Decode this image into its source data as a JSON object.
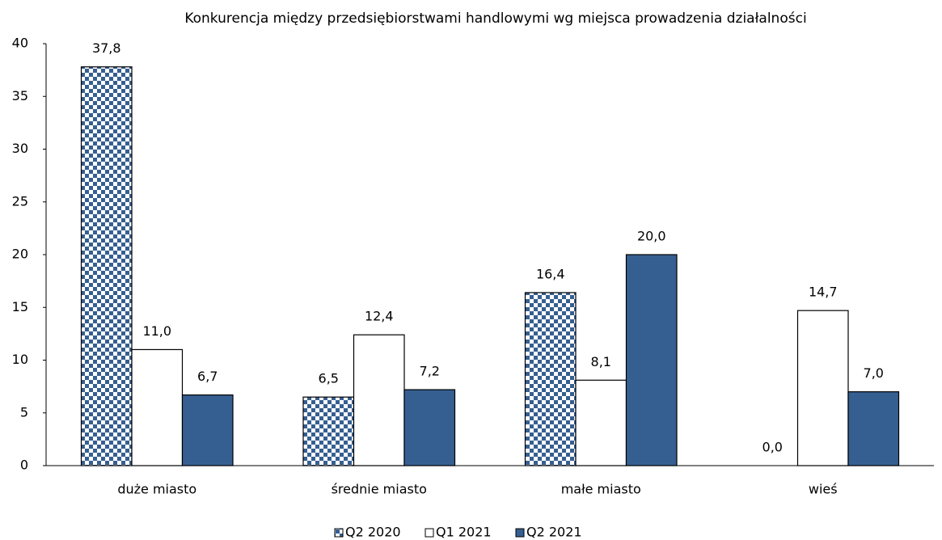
{
  "chart_data": {
    "type": "bar",
    "title": "Konkurencja między przedsiębiorstwami handlowymi wg miejsca prowadzenia działalności",
    "categories": [
      "duże miasto",
      "średnie miasto",
      "małe miasto",
      "wieś"
    ],
    "series": [
      {
        "name": "Q2 2020",
        "color": "#365f91",
        "pattern": "checkerboard",
        "values": [
          37.8,
          6.5,
          16.4,
          0.0
        ],
        "value_labels": [
          "37,8",
          "6,5",
          "16,4",
          "0,0"
        ]
      },
      {
        "name": "Q1 2021",
        "color": "#ffffff",
        "values": [
          11.0,
          12.4,
          8.1,
          14.7
        ],
        "value_labels": [
          "11,0",
          "12,4",
          "8,1",
          "14,7"
        ]
      },
      {
        "name": "Q2 2021",
        "color": "#365f91",
        "values": [
          6.7,
          7.2,
          20.0,
          7.0
        ],
        "value_labels": [
          "6,7",
          "7,2",
          "20,0",
          "7,0"
        ]
      }
    ],
    "ylim": [
      0,
      40
    ],
    "yticks": [
      0,
      5,
      10,
      15,
      20,
      25,
      30,
      35,
      40
    ],
    "grid": false,
    "legend": "bottom"
  }
}
